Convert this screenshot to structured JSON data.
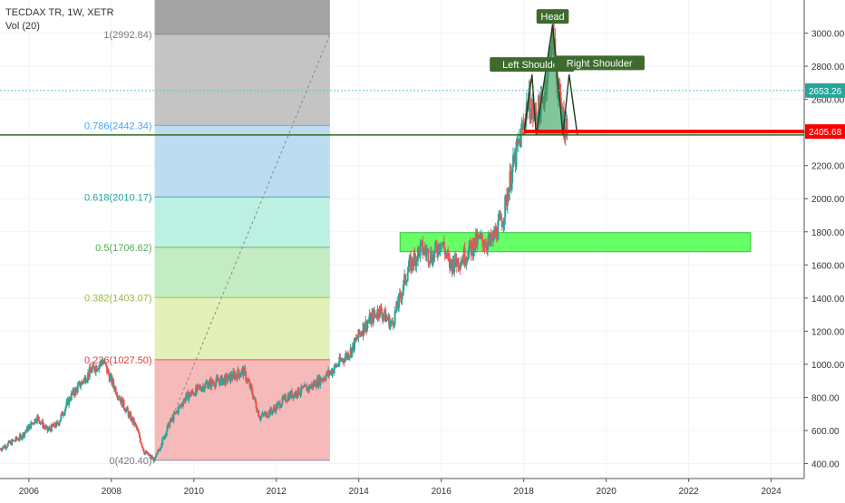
{
  "header": {
    "symbol_line": "TECDAX TR, 1W, XETR",
    "volume_label": "Vol (20)"
  },
  "colors": {
    "up_candle": "#26a69a",
    "down_candle": "#ef5350",
    "support_line": "#2e6b1e",
    "resistance_red": "#ff0000",
    "cyan_line": "#5bc0c9",
    "zone_green": "#66ff66",
    "badge_cyan": "#26a69a",
    "badge_red": "#ff0000",
    "pattern_label_bg": "#3d6b2e",
    "pattern_fill": "#2e9e57"
  },
  "chart_data": {
    "type": "candlestick",
    "xlim": [
      2005.3,
      2024.8
    ],
    "ylim": [
      310,
      3200
    ],
    "y_ticks": [
      400,
      600,
      800,
      1000,
      1200,
      1400,
      1600,
      1800,
      2000,
      2200,
      2400,
      2600,
      2800,
      3000
    ],
    "y_tick_labels": [
      "400.00",
      "600.00",
      "800.00",
      "1000.00",
      "1200.00",
      "1400.00",
      "1600.00",
      "1800.00",
      "2000.00",
      "2200.00",
      "2400.00",
      "2600.00",
      "2800.00",
      "3000.00"
    ],
    "x_ticks": [
      2006,
      2008,
      2010,
      2012,
      2014,
      2016,
      2018,
      2020,
      2022,
      2024
    ],
    "x_tick_labels": [
      "2006",
      "2008",
      "2010",
      "2012",
      "2014",
      "2016",
      "2018",
      "2020",
      "2022",
      "2024"
    ],
    "price_anchors": [
      [
        2005.3,
        490
      ],
      [
        2005.8,
        560
      ],
      [
        2006.2,
        680
      ],
      [
        2006.45,
        600
      ],
      [
        2006.7,
        640
      ],
      [
        2007.0,
        800
      ],
      [
        2007.5,
        960
      ],
      [
        2007.8,
        1020
      ],
      [
        2008.0,
        900
      ],
      [
        2008.3,
        750
      ],
      [
        2008.6,
        620
      ],
      [
        2008.8,
        470
      ],
      [
        2009.05,
        420
      ],
      [
        2009.4,
        640
      ],
      [
        2009.8,
        800
      ],
      [
        2010.3,
        880
      ],
      [
        2010.8,
        910
      ],
      [
        2011.2,
        960
      ],
      [
        2011.4,
        840
      ],
      [
        2011.6,
        680
      ],
      [
        2011.9,
        720
      ],
      [
        2012.3,
        810
      ],
      [
        2012.8,
        860
      ],
      [
        2013.3,
        950
      ],
      [
        2013.8,
        1080
      ],
      [
        2014.1,
        1220
      ],
      [
        2014.5,
        1330
      ],
      [
        2014.8,
        1240
      ],
      [
        2015.0,
        1400
      ],
      [
        2015.2,
        1580
      ],
      [
        2015.5,
        1700
      ],
      [
        2015.8,
        1650
      ],
      [
        2016.0,
        1750
      ],
      [
        2016.2,
        1600
      ],
      [
        2016.5,
        1640
      ],
      [
        2016.9,
        1750
      ],
      [
        2017.2,
        1730
      ],
      [
        2017.5,
        1890
      ],
      [
        2017.7,
        2150
      ],
      [
        2017.85,
        2300
      ],
      [
        2018.0,
        2450
      ],
      [
        2018.1,
        2600
      ],
      [
        2018.25,
        2500
      ],
      [
        2018.45,
        2560
      ],
      [
        2018.7,
        3000
      ],
      [
        2018.85,
        2620
      ],
      [
        2019.0,
        2420
      ],
      [
        2019.05,
        2460
      ]
    ],
    "fibonacci": {
      "x_range": [
        2009.05,
        2013.3
      ],
      "levels": [
        {
          "ratio": "0",
          "value": 420.4,
          "label": "0(420.40)",
          "text_color": "#787b86",
          "fill": null
        },
        {
          "ratio": "0.236",
          "value": 1027.5,
          "label": "0.236(1027.50)",
          "text_color": "#e53935",
          "fill": "#f7baba"
        },
        {
          "ratio": "0.382",
          "value": 1403.07,
          "label": "0.382(1403.07)",
          "text_color": "#9bbc39",
          "fill": "#e3f1b8"
        },
        {
          "ratio": "0.5",
          "value": 1706.62,
          "label": "0.5(1706.62)",
          "text_color": "#4caf50",
          "fill": "#c3ecc3"
        },
        {
          "ratio": "0.618",
          "value": 2010.17,
          "label": "0.618(2010.17)",
          "text_color": "#26a69a",
          "fill": "#bcf0e2"
        },
        {
          "ratio": "0.786",
          "value": 2442.34,
          "label": "0.786(2442.34)",
          "text_color": "#42a5f5",
          "fill": "#bcdcf1"
        },
        {
          "ratio": "1",
          "value": 2992.84,
          "label": "1(2992.84)",
          "text_color": "#787b86",
          "fill": "#c4c4c4"
        }
      ],
      "top_fill": "#a3a3a3"
    },
    "horizontal_lines": [
      {
        "value": 2653.26,
        "label": "2653.26",
        "style": "dotted-cyan"
      },
      {
        "value": 2405.68,
        "label": "2405.68",
        "style": "red-band"
      },
      {
        "value": 2385,
        "style": "dark-green"
      }
    ],
    "zone": {
      "x_range": [
        2015.0,
        2023.5
      ],
      "y_range": [
        1680,
        1795
      ]
    },
    "head_and_shoulders": {
      "labels": [
        {
          "text": "Head",
          "at": [
            2018.7,
            3095
          ]
        },
        {
          "text": "Left Shoulder",
          "at": [
            2018.2,
            2805
          ]
        },
        {
          "text": "Right Shoulder",
          "at": [
            2018.85,
            2815
          ]
        }
      ]
    }
  }
}
